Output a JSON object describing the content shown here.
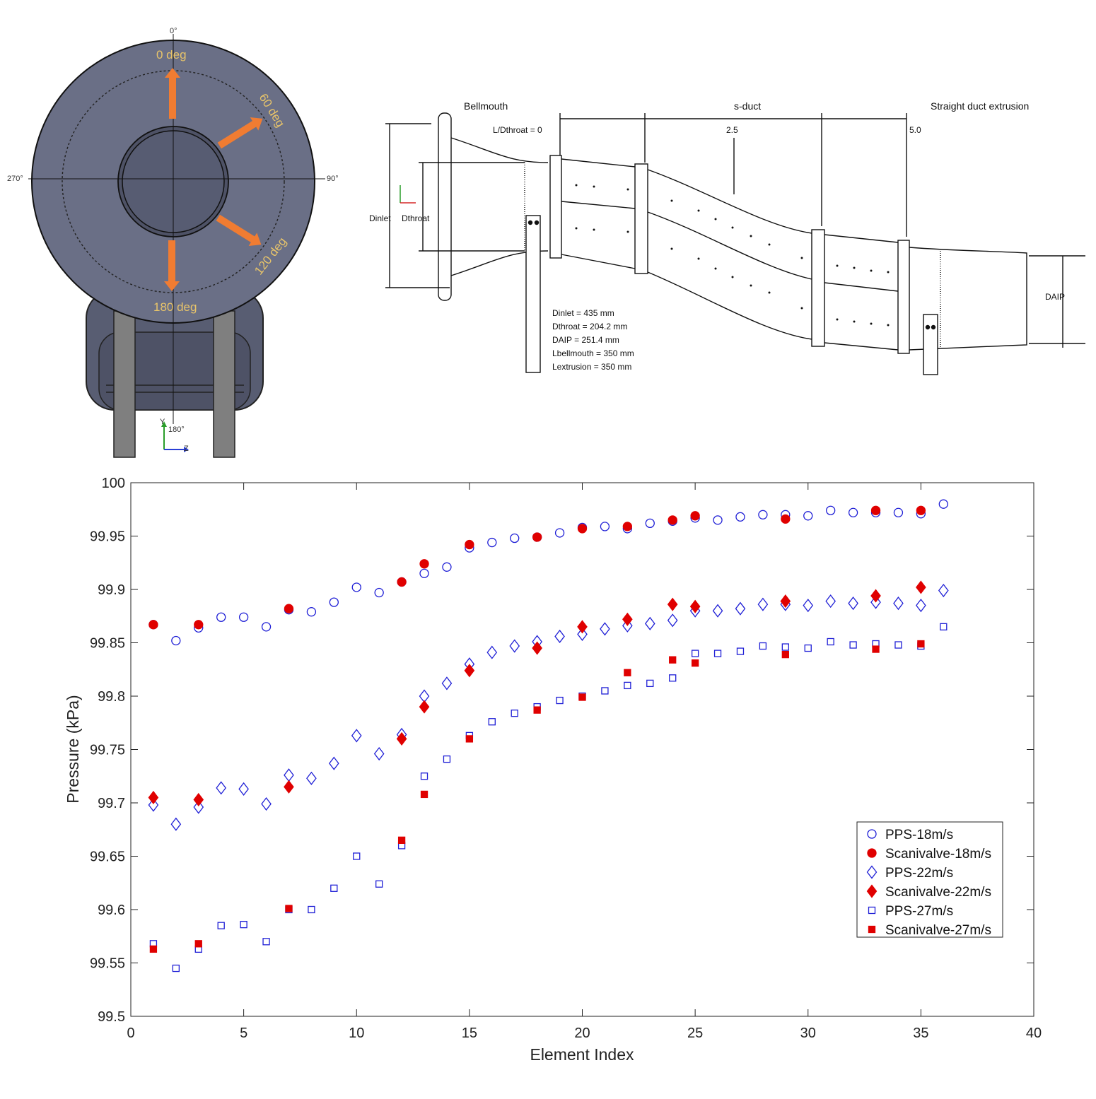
{
  "inlet_view": {
    "axis_labels": [
      "0°",
      "90°",
      "180°",
      "270°"
    ],
    "arrow_labels": [
      "0 deg",
      "60 deg",
      "120 deg",
      "180 deg"
    ],
    "triad_labels": {
      "y": "Y",
      "z": "Z",
      "bottom_angle": "180°"
    },
    "colors": {
      "body": "#5f6479",
      "arrow": "#f07c32",
      "label": "#e8c46a",
      "support": "#7f7f7f"
    }
  },
  "duct_drawing": {
    "section_labels": [
      "Bellmouth",
      "s-duct",
      "Straight duct extrusion"
    ],
    "station_prefix": "L/Dthroat = 0",
    "station_values": [
      "2.5",
      "5.0"
    ],
    "dim_labels": {
      "inlet": "Dinlet",
      "throat": "Dthroat",
      "aip": "DAIP"
    },
    "specs": [
      "Dinlet = 435 mm",
      "Dthroat = 204.2 mm",
      "DAIP = 251.4 mm",
      "Lbellmouth = 350 mm",
      "Lextrusion = 350 mm"
    ]
  },
  "chart_data": {
    "type": "scatter",
    "xlabel": "Element Index",
    "ylabel": "Pressure (kPa)",
    "xlim": [
      0,
      40
    ],
    "ylim": [
      99.5,
      100
    ],
    "xticks": [
      "0",
      "5",
      "10",
      "15",
      "20",
      "25",
      "30",
      "35",
      "40"
    ],
    "yticks": [
      "99.5",
      "99.55",
      "99.6",
      "99.65",
      "99.7",
      "99.75",
      "99.8",
      "99.85",
      "99.9",
      "99.95",
      "100"
    ],
    "grid": false,
    "legend_position": "bottom-right",
    "series": [
      {
        "name": "PPS-18m/s",
        "marker": "circle",
        "filled": false,
        "color": "#1f1fd6",
        "x": [
          1,
          2,
          3,
          4,
          5,
          6,
          7,
          8,
          9,
          10,
          11,
          12,
          13,
          14,
          15,
          16,
          17,
          18,
          19,
          20,
          21,
          22,
          23,
          24,
          25,
          26,
          27,
          28,
          29,
          30,
          31,
          32,
          33,
          34,
          35,
          36
        ],
        "y": [
          99.867,
          99.852,
          99.864,
          99.874,
          99.874,
          99.865,
          99.881,
          99.879,
          99.888,
          99.902,
          99.897,
          99.907,
          99.915,
          99.921,
          99.939,
          99.944,
          99.948,
          99.949,
          99.953,
          99.958,
          99.959,
          99.957,
          99.962,
          99.964,
          99.967,
          99.965,
          99.968,
          99.97,
          99.97,
          99.969,
          99.974,
          99.972,
          99.972,
          99.972,
          99.971,
          99.98
        ]
      },
      {
        "name": "Scanivalve-18m/s",
        "marker": "circle",
        "filled": true,
        "color": "#e00000",
        "x": [
          1,
          3,
          7,
          12,
          13,
          15,
          18,
          20,
          22,
          24,
          25,
          29,
          33,
          35
        ],
        "y": [
          99.867,
          99.867,
          99.882,
          99.907,
          99.924,
          99.942,
          99.949,
          99.957,
          99.959,
          99.965,
          99.969,
          99.966,
          99.974,
          99.974
        ]
      },
      {
        "name": "PPS-22m/s",
        "marker": "diamond",
        "filled": false,
        "color": "#1f1fd6",
        "x": [
          1,
          2,
          3,
          4,
          5,
          6,
          7,
          8,
          9,
          10,
          11,
          12,
          13,
          14,
          15,
          16,
          17,
          18,
          19,
          20,
          21,
          22,
          23,
          24,
          25,
          26,
          27,
          28,
          29,
          30,
          31,
          32,
          33,
          34,
          35,
          36
        ],
        "y": [
          99.698,
          99.68,
          99.696,
          99.714,
          99.713,
          99.699,
          99.726,
          99.723,
          99.737,
          99.763,
          99.746,
          99.764,
          99.8,
          99.812,
          99.83,
          99.841,
          99.847,
          99.851,
          99.856,
          99.858,
          99.863,
          99.866,
          99.868,
          99.871,
          99.88,
          99.88,
          99.882,
          99.886,
          99.886,
          99.885,
          99.889,
          99.887,
          99.888,
          99.887,
          99.885,
          99.899
        ]
      },
      {
        "name": "Scanivalve-22m/s",
        "marker": "diamond",
        "filled": true,
        "color": "#e00000",
        "x": [
          1,
          3,
          7,
          12,
          13,
          15,
          18,
          20,
          22,
          24,
          25,
          29,
          33,
          35
        ],
        "y": [
          99.705,
          99.703,
          99.715,
          99.76,
          99.79,
          99.824,
          99.845,
          99.865,
          99.872,
          99.886,
          99.884,
          99.889,
          99.894,
          99.902
        ]
      },
      {
        "name": "PPS-27m/s",
        "marker": "square",
        "filled": false,
        "color": "#1f1fd6",
        "x": [
          1,
          2,
          3,
          4,
          5,
          6,
          7,
          8,
          9,
          10,
          11,
          12,
          13,
          14,
          15,
          16,
          17,
          18,
          19,
          20,
          21,
          22,
          23,
          24,
          25,
          26,
          27,
          28,
          29,
          30,
          31,
          32,
          33,
          34,
          35,
          36
        ],
        "y": [
          99.568,
          99.545,
          99.563,
          99.585,
          99.586,
          99.57,
          99.6,
          99.6,
          99.62,
          99.65,
          99.624,
          99.66,
          99.725,
          99.741,
          99.763,
          99.776,
          99.784,
          99.79,
          99.796,
          99.8,
          99.805,
          99.81,
          99.812,
          99.817,
          99.84,
          99.84,
          99.842,
          99.847,
          99.846,
          99.845,
          99.851,
          99.848,
          99.849,
          99.848,
          99.847,
          99.865
        ]
      },
      {
        "name": "Scanivalve-27m/s",
        "marker": "square",
        "filled": true,
        "color": "#e00000",
        "x": [
          1,
          3,
          7,
          12,
          13,
          15,
          18,
          20,
          22,
          24,
          25,
          29,
          33,
          35
        ],
        "y": [
          99.563,
          99.568,
          99.601,
          99.665,
          99.708,
          99.76,
          99.787,
          99.799,
          99.822,
          99.834,
          99.831,
          99.839,
          99.844,
          99.849
        ]
      }
    ]
  }
}
